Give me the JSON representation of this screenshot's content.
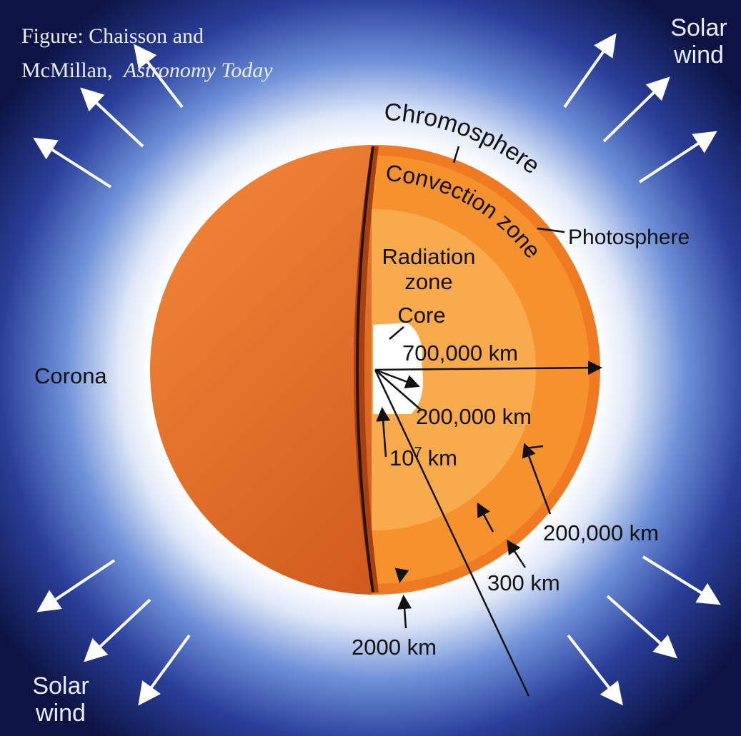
{
  "credit": {
    "line1": "Figure: Chaisson and",
    "line2": "McMillan,",
    "book": "Astronomy Today"
  },
  "solar_wind_top": {
    "line1": "Solar",
    "line2": "wind"
  },
  "solar_wind_bottom": {
    "line1": "Solar",
    "line2": "wind"
  },
  "layers": {
    "chromosphere": "Chromosphere",
    "convection_zone": "Convection zone",
    "photosphere": "Photosphere",
    "radiation_zone": {
      "line1": "Radiation",
      "line2": "zone"
    },
    "core": "Core",
    "corona": "Corona"
  },
  "dimensions": {
    "sun_radius": "700,000 km",
    "core_radius": "200,000 km",
    "corona_extent": {
      "base": "10",
      "exponent": "7",
      "unit": "km"
    },
    "convection_depth": "200,000 km",
    "photosphere_depth": "300 km",
    "chromosphere_depth": "2000 km"
  }
}
